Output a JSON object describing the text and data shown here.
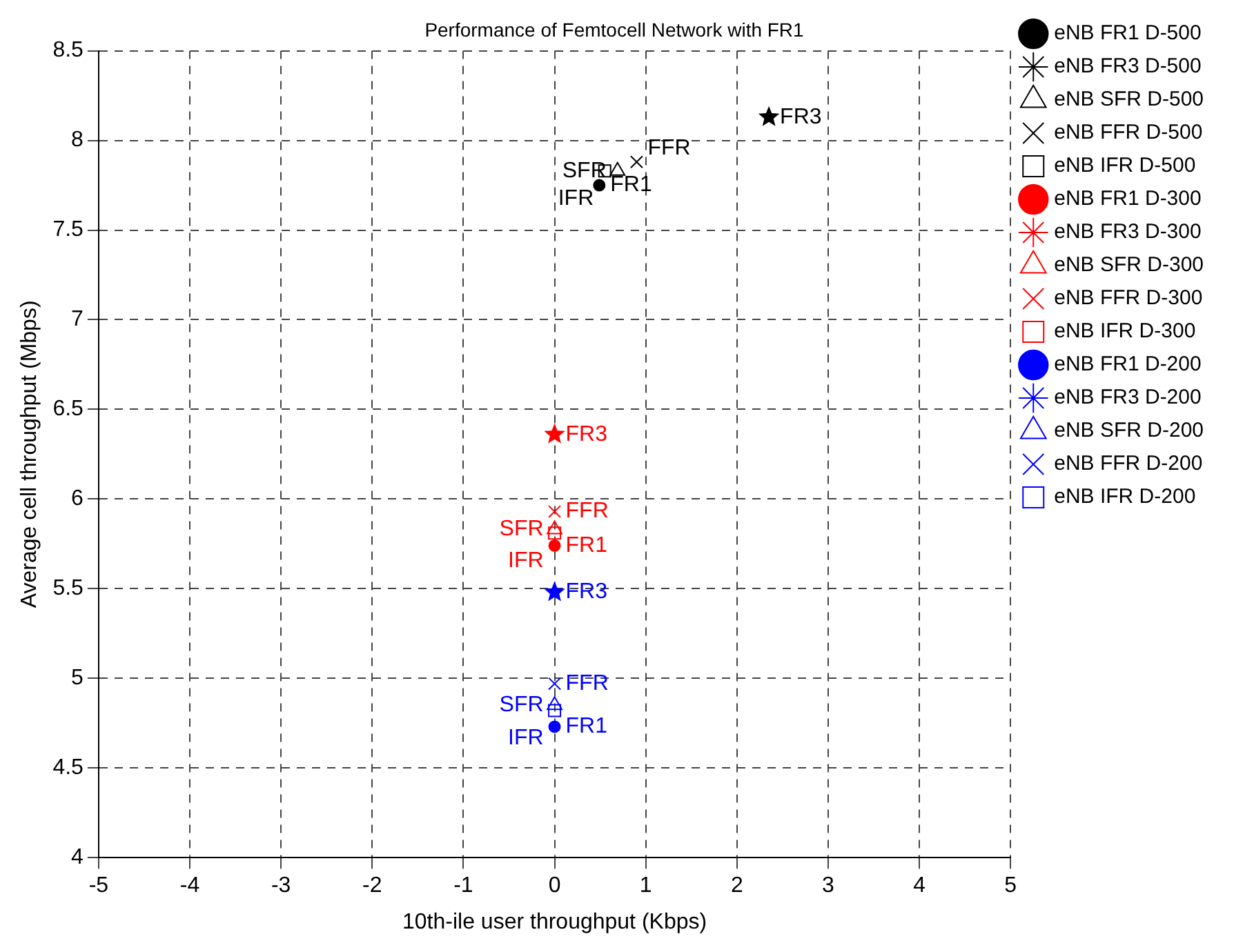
{
  "chart_data": {
    "type": "scatter",
    "title": "Performance of Femtocell Network with FR1",
    "xlabel": "10th-ile user throughput (Kbps)",
    "ylabel": "Average cell throughput (Mbps)",
    "xlim": [
      -5,
      5
    ],
    "xticks": [
      -5,
      -4,
      -3,
      -2,
      -1,
      0,
      1,
      2,
      3,
      4,
      5
    ],
    "ylim": [
      4,
      8.5
    ],
    "yticks": [
      4,
      4.5,
      5,
      5.5,
      6,
      6.5,
      7,
      7.5,
      8,
      8.5
    ],
    "grid": true,
    "legend": "right",
    "series": [
      {
        "name": "eNB FR1 D-500",
        "color": "#000000",
        "marker": "circle",
        "x": [
          0.49
        ],
        "values": [
          7.75
        ]
      },
      {
        "name": "eNB FR3 D-500",
        "color": "#000000",
        "marker": "star",
        "x": [
          2.35
        ],
        "values": [
          8.13
        ]
      },
      {
        "name": "eNB SFR D-500",
        "color": "#000000",
        "marker": "triangle",
        "x": [
          0.69
        ],
        "values": [
          7.83
        ]
      },
      {
        "name": "eNB FFR D-500",
        "color": "#000000",
        "marker": "cross",
        "x": [
          0.9
        ],
        "values": [
          7.88
        ]
      },
      {
        "name": "eNB IFR D-500",
        "color": "#000000",
        "marker": "square",
        "x": [
          0.55
        ],
        "values": [
          7.83
        ]
      },
      {
        "name": "eNB FR1 D-300",
        "color": "#ff0000",
        "marker": "circle",
        "x": [
          0
        ],
        "values": [
          5.74
        ]
      },
      {
        "name": "eNB FR3 D-300",
        "color": "#ff0000",
        "marker": "star",
        "x": [
          0
        ],
        "values": [
          6.36
        ]
      },
      {
        "name": "eNB SFR D-300",
        "color": "#ff0000",
        "marker": "triangle",
        "x": [
          0
        ],
        "values": [
          5.83
        ]
      },
      {
        "name": "eNB FFR D-300",
        "color": "#ff0000",
        "marker": "cross",
        "x": [
          0
        ],
        "values": [
          5.93
        ]
      },
      {
        "name": "eNB IFR D-300",
        "color": "#ff0000",
        "marker": "square",
        "x": [
          0
        ],
        "values": [
          5.81
        ]
      },
      {
        "name": "eNB FR1 D-200",
        "color": "#0000ff",
        "marker": "circle",
        "x": [
          0
        ],
        "values": [
          4.73
        ]
      },
      {
        "name": "eNB FR3 D-200",
        "color": "#0000ff",
        "marker": "star",
        "x": [
          0
        ],
        "values": [
          5.48
        ]
      },
      {
        "name": "eNB SFR D-200",
        "color": "#0000ff",
        "marker": "triangle",
        "x": [
          0
        ],
        "values": [
          4.85
        ]
      },
      {
        "name": "eNB FFR D-200",
        "color": "#0000ff",
        "marker": "cross",
        "x": [
          0
        ],
        "values": [
          4.97
        ]
      },
      {
        "name": "eNB IFR D-200",
        "color": "#0000ff",
        "marker": "square",
        "x": [
          0
        ],
        "values": [
          4.82
        ]
      }
    ],
    "annotations": [
      {
        "text": "FR1",
        "x": 0.49,
        "y": 7.75
      },
      {
        "text": "FR3",
        "x": 2.35,
        "y": 8.13
      },
      {
        "text": "SFR",
        "x": 0.69,
        "y": 7.83
      },
      {
        "text": "FFR",
        "x": 0.9,
        "y": 7.88
      },
      {
        "text": "IFR",
        "x": 0.55,
        "y": 7.83
      },
      {
        "text": "FR1",
        "x": 0,
        "y": 5.74
      },
      {
        "text": "FR3",
        "x": 0,
        "y": 6.36
      },
      {
        "text": "SFR",
        "x": 0,
        "y": 5.83
      },
      {
        "text": "FFR",
        "x": 0,
        "y": 5.93
      },
      {
        "text": "IFR",
        "x": 0,
        "y": 5.81
      },
      {
        "text": "FR1",
        "x": 0,
        "y": 4.73
      },
      {
        "text": "FR3",
        "x": 0,
        "y": 5.48
      },
      {
        "text": "SFR",
        "x": 0,
        "y": 4.85
      },
      {
        "text": "FFR",
        "x": 0,
        "y": 4.97
      },
      {
        "text": "IFR",
        "x": 0,
        "y": 4.82
      }
    ]
  }
}
